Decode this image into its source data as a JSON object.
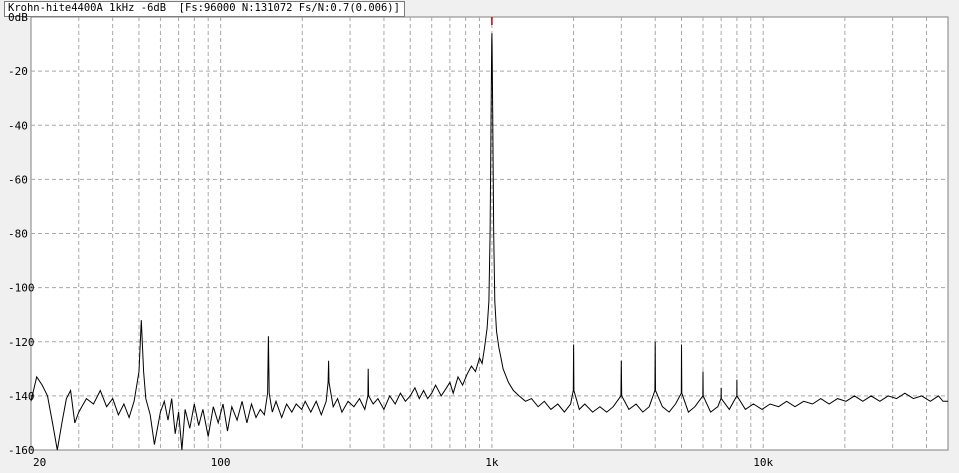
{
  "window": {
    "title": "Krohn-hite4400A 1kHz -6dB  [Fs:96000 N:131072 Fs/N:0.7(0.006)]"
  },
  "colors": {
    "background": "#ffffff",
    "grid": "#a8a8a8",
    "trace": "#000000",
    "peak_marker": "#c00000"
  },
  "chart_data": {
    "type": "line",
    "title": "Krohn-hite4400A 1kHz -6dB  [Fs:96000 N:131072 Fs/N:0.7(0.006)]",
    "xlabel": "",
    "ylabel": "",
    "xscale": "log",
    "xlim": [
      20,
      48000
    ],
    "ylim": [
      -160,
      0
    ],
    "grid": true,
    "x_ticks": [
      {
        "value": 20,
        "label": "20"
      },
      {
        "value": 100,
        "label": "100"
      },
      {
        "value": 1000,
        "label": "1k"
      },
      {
        "value": 10000,
        "label": "10k"
      }
    ],
    "y_ticks": [
      {
        "value": 0,
        "label": "0dB"
      },
      {
        "value": -20,
        "label": "-20"
      },
      {
        "value": -40,
        "label": "-40"
      },
      {
        "value": -60,
        "label": "-60"
      },
      {
        "value": -80,
        "label": "-80"
      },
      {
        "value": -100,
        "label": "-100"
      },
      {
        "value": -120,
        "label": "-120"
      },
      {
        "value": -140,
        "label": "-140"
      },
      {
        "value": -160,
        "label": "-160"
      }
    ],
    "series": [
      {
        "points": [
          [
            20,
            -142
          ],
          [
            21,
            -133
          ],
          [
            22,
            -136
          ],
          [
            23,
            -140
          ],
          [
            24,
            -150
          ],
          [
            25,
            -160
          ],
          [
            26,
            -150
          ],
          [
            27,
            -141
          ],
          [
            28,
            -138
          ],
          [
            29,
            -150
          ],
          [
            30,
            -146
          ],
          [
            32,
            -141
          ],
          [
            34,
            -143
          ],
          [
            36,
            -138
          ],
          [
            38,
            -144
          ],
          [
            40,
            -141
          ],
          [
            42,
            -147
          ],
          [
            44,
            -143
          ],
          [
            46,
            -148
          ],
          [
            48,
            -142
          ],
          [
            50,
            -131
          ],
          [
            51,
            -112
          ],
          [
            52,
            -131
          ],
          [
            53,
            -141
          ],
          [
            55,
            -147
          ],
          [
            57,
            -158
          ],
          [
            60,
            -146
          ],
          [
            62,
            -142
          ],
          [
            64,
            -149
          ],
          [
            66,
            -141
          ],
          [
            68,
            -154
          ],
          [
            70,
            -146
          ],
          [
            72,
            -160
          ],
          [
            74,
            -145
          ],
          [
            77,
            -152
          ],
          [
            80,
            -143
          ],
          [
            83,
            -151
          ],
          [
            86,
            -145
          ],
          [
            90,
            -155
          ],
          [
            94,
            -144
          ],
          [
            98,
            -150
          ],
          [
            102,
            -143
          ],
          [
            106,
            -153
          ],
          [
            110,
            -144
          ],
          [
            115,
            -149
          ],
          [
            120,
            -142
          ],
          [
            125,
            -150
          ],
          [
            130,
            -143
          ],
          [
            135,
            -148
          ],
          [
            140,
            -145
          ],
          [
            145,
            -147
          ],
          [
            149,
            -139
          ],
          [
            150,
            -118
          ],
          [
            151,
            -139
          ],
          [
            155,
            -146
          ],
          [
            160,
            -142
          ],
          [
            168,
            -148
          ],
          [
            175,
            -143
          ],
          [
            183,
            -146
          ],
          [
            190,
            -143
          ],
          [
            199,
            -145
          ],
          [
            205,
            -142
          ],
          [
            215,
            -146
          ],
          [
            225,
            -142
          ],
          [
            235,
            -147
          ],
          [
            245,
            -142
          ],
          [
            249,
            -135
          ],
          [
            250,
            -127
          ],
          [
            251,
            -135
          ],
          [
            260,
            -144
          ],
          [
            270,
            -141
          ],
          [
            280,
            -146
          ],
          [
            295,
            -142
          ],
          [
            310,
            -144
          ],
          [
            325,
            -141
          ],
          [
            340,
            -145
          ],
          [
            349,
            -140
          ],
          [
            350,
            -130
          ],
          [
            351,
            -140
          ],
          [
            365,
            -143
          ],
          [
            380,
            -141
          ],
          [
            400,
            -145
          ],
          [
            420,
            -140
          ],
          [
            440,
            -143
          ],
          [
            460,
            -139
          ],
          [
            480,
            -142
          ],
          [
            500,
            -140
          ],
          [
            520,
            -137
          ],
          [
            540,
            -141
          ],
          [
            560,
            -138
          ],
          [
            580,
            -141
          ],
          [
            600,
            -139
          ],
          [
            620,
            -136
          ],
          [
            650,
            -140
          ],
          [
            680,
            -137
          ],
          [
            700,
            -135
          ],
          [
            720,
            -139
          ],
          [
            750,
            -133
          ],
          [
            780,
            -136
          ],
          [
            810,
            -132
          ],
          [
            840,
            -129
          ],
          [
            870,
            -131
          ],
          [
            900,
            -126
          ],
          [
            920,
            -128
          ],
          [
            940,
            -122
          ],
          [
            960,
            -115
          ],
          [
            975,
            -105
          ],
          [
            985,
            -80
          ],
          [
            993,
            -35
          ],
          [
            998,
            -10
          ],
          [
            1000,
            -6
          ],
          [
            1002,
            -10
          ],
          [
            1007,
            -35
          ],
          [
            1015,
            -80
          ],
          [
            1025,
            -105
          ],
          [
            1040,
            -116
          ],
          [
            1060,
            -122
          ],
          [
            1080,
            -126
          ],
          [
            1100,
            -130
          ],
          [
            1150,
            -135
          ],
          [
            1200,
            -138
          ],
          [
            1260,
            -140
          ],
          [
            1330,
            -142
          ],
          [
            1400,
            -141
          ],
          [
            1480,
            -144
          ],
          [
            1560,
            -142
          ],
          [
            1650,
            -145
          ],
          [
            1750,
            -143
          ],
          [
            1850,
            -146
          ],
          [
            1950,
            -143
          ],
          [
            1995,
            -138
          ],
          [
            2000,
            -121
          ],
          [
            2005,
            -138
          ],
          [
            2100,
            -145
          ],
          [
            2200,
            -143
          ],
          [
            2350,
            -146
          ],
          [
            2500,
            -144
          ],
          [
            2650,
            -146
          ],
          [
            2800,
            -144
          ],
          [
            2990,
            -140
          ],
          [
            3000,
            -127
          ],
          [
            3010,
            -140
          ],
          [
            3200,
            -145
          ],
          [
            3400,
            -143
          ],
          [
            3600,
            -146
          ],
          [
            3800,
            -144
          ],
          [
            3990,
            -138
          ],
          [
            4000,
            -120
          ],
          [
            4010,
            -138
          ],
          [
            4250,
            -144
          ],
          [
            4500,
            -146
          ],
          [
            4750,
            -143
          ],
          [
            4990,
            -139
          ],
          [
            5000,
            -121
          ],
          [
            5010,
            -139
          ],
          [
            5300,
            -146
          ],
          [
            5600,
            -144
          ],
          [
            5990,
            -140
          ],
          [
            6000,
            -131
          ],
          [
            6010,
            -140
          ],
          [
            6400,
            -146
          ],
          [
            6800,
            -144
          ],
          [
            6990,
            -141
          ],
          [
            7000,
            -137
          ],
          [
            7010,
            -141
          ],
          [
            7500,
            -145
          ],
          [
            7990,
            -140
          ],
          [
            8000,
            -134
          ],
          [
            8010,
            -140
          ],
          [
            8600,
            -145
          ],
          [
            9200,
            -143
          ],
          [
            9900,
            -145
          ],
          [
            10600,
            -143
          ],
          [
            11400,
            -144
          ],
          [
            12200,
            -142
          ],
          [
            13100,
            -144
          ],
          [
            14100,
            -142
          ],
          [
            15200,
            -143
          ],
          [
            16300,
            -141
          ],
          [
            17500,
            -143
          ],
          [
            18800,
            -141
          ],
          [
            20200,
            -142
          ],
          [
            21700,
            -140
          ],
          [
            23300,
            -142
          ],
          [
            25000,
            -140
          ],
          [
            26900,
            -142
          ],
          [
            28900,
            -140
          ],
          [
            31000,
            -141
          ],
          [
            33300,
            -139
          ],
          [
            35800,
            -141
          ],
          [
            38400,
            -140
          ],
          [
            41300,
            -142
          ],
          [
            44300,
            -140
          ],
          [
            46000,
            -142
          ],
          [
            48000,
            -142
          ]
        ]
      }
    ],
    "peak_marker": {
      "x": 1000
    }
  }
}
